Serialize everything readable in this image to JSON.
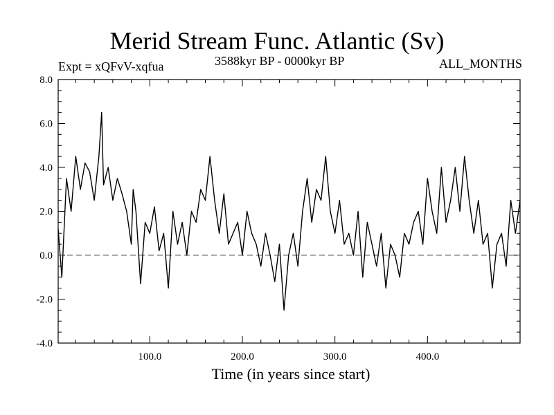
{
  "header": {
    "title": "Merid Stream Func. Atlantic (Sv)",
    "expt": "Expt = xQFvV-xqfua",
    "range": "3588kyr BP - 0000kyr BP",
    "season": "ALL_MONTHS"
  },
  "chart_data": {
    "type": "line",
    "title": "Merid Stream Func. Atlantic (Sv)",
    "xlabel": "Time (in years since start)",
    "ylabel": "",
    "xlim": [
      1,
      500
    ],
    "ylim": [
      -4,
      8
    ],
    "xticks": [
      100,
      200,
      300,
      400
    ],
    "xtick_labels": [
      "100.0",
      "200.0",
      "300.0",
      "400.0"
    ],
    "yticks": [
      -4,
      -2,
      0,
      2,
      4,
      6,
      8
    ],
    "ytick_labels": [
      "-4.0",
      "-2.0",
      "0.0",
      "2.0",
      "4.0",
      "6.0",
      "8.0"
    ],
    "reference_line": {
      "y": 0,
      "style": "dashed"
    },
    "series": [
      {
        "name": "Merid Stream Func. Atlantic",
        "x": [
          1,
          5,
          10,
          15,
          20,
          25,
          30,
          35,
          40,
          45,
          48,
          50,
          55,
          60,
          65,
          70,
          75,
          80,
          82,
          85,
          90,
          95,
          100,
          105,
          110,
          115,
          120,
          125,
          130,
          135,
          140,
          145,
          150,
          155,
          160,
          165,
          170,
          175,
          180,
          185,
          190,
          195,
          200,
          205,
          210,
          215,
          220,
          225,
          230,
          235,
          240,
          245,
          250,
          255,
          260,
          265,
          270,
          275,
          280,
          285,
          290,
          295,
          300,
          305,
          310,
          315,
          320,
          325,
          330,
          335,
          340,
          345,
          350,
          355,
          360,
          365,
          370,
          375,
          380,
          385,
          390,
          395,
          400,
          405,
          410,
          415,
          420,
          425,
          430,
          435,
          440,
          445,
          450,
          455,
          460,
          465,
          470,
          475,
          480,
          485,
          490,
          495,
          500
        ],
        "values": [
          1.2,
          -1.0,
          3.5,
          2.0,
          4.5,
          3.0,
          4.2,
          3.8,
          2.5,
          4.5,
          6.5,
          3.2,
          4.0,
          2.5,
          3.5,
          2.8,
          2.0,
          0.5,
          3.0,
          2.0,
          -1.3,
          1.5,
          1.0,
          2.2,
          0.2,
          1.0,
          -1.5,
          2.0,
          0.5,
          1.5,
          0.0,
          2.0,
          1.5,
          3.0,
          2.5,
          4.5,
          2.5,
          1.0,
          2.8,
          0.5,
          1.0,
          1.5,
          0.0,
          2.0,
          1.0,
          0.5,
          -0.5,
          1.0,
          0.0,
          -1.2,
          0.5,
          -2.5,
          0.0,
          1.0,
          -0.5,
          2.0,
          3.5,
          1.5,
          3.0,
          2.5,
          4.5,
          2.0,
          1.0,
          2.5,
          0.5,
          1.0,
          0.0,
          2.0,
          -1.0,
          1.5,
          0.5,
          -0.5,
          1.0,
          -1.5,
          0.5,
          0.0,
          -1.0,
          1.0,
          0.5,
          1.5,
          2.0,
          0.5,
          3.5,
          2.0,
          1.0,
          4.0,
          1.5,
          2.5,
          4.0,
          2.0,
          4.5,
          2.5,
          1.0,
          2.5,
          0.5,
          1.0,
          -1.5,
          0.5,
          1.0,
          -0.5,
          2.5,
          1.0,
          2.5
        ]
      }
    ]
  }
}
